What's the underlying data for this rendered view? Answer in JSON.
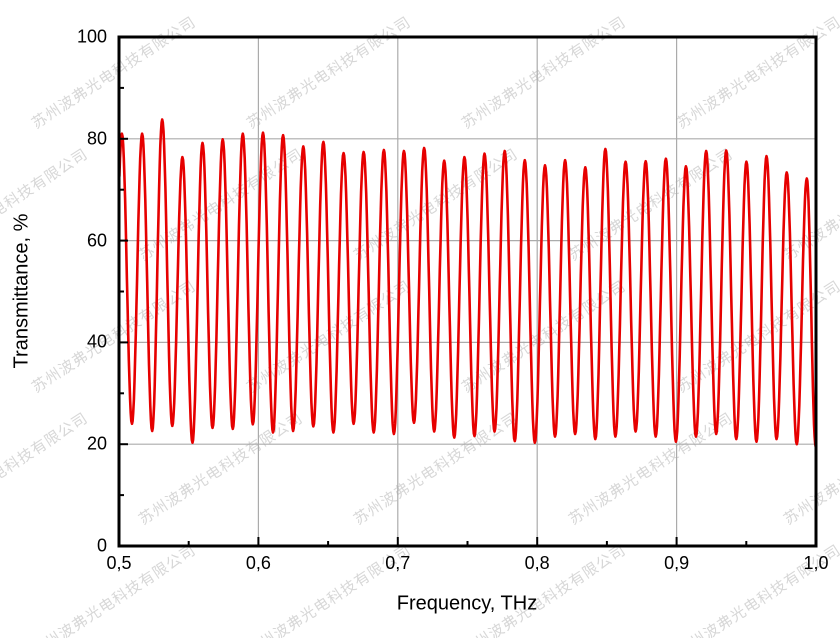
{
  "watermark": {
    "text": "苏州波弗光电科技有限公司",
    "color": "#d7d7d7"
  },
  "chart_data": {
    "type": "line",
    "title": "",
    "xlabel": "Frequency, THz",
    "ylabel": "Transmittance, %",
    "xlim": [
      0.5,
      1.0
    ],
    "ylim": [
      0,
      100
    ],
    "grid": "major",
    "legend": "none",
    "x_major_ticks": [
      0.5,
      0.6,
      0.7,
      0.8,
      0.9,
      1.0
    ],
    "x_tick_labels": [
      "0,5",
      "0,6",
      "0,7",
      "0,8",
      "0,9",
      "1,0"
    ],
    "x_minor_ticks": [
      0.55,
      0.65,
      0.75,
      0.85,
      0.95
    ],
    "y_major_ticks": [
      0,
      20,
      40,
      60,
      80,
      100
    ],
    "y_tick_labels": [
      "0",
      "20",
      "40",
      "60",
      "80",
      "100"
    ],
    "y_minor_ticks": [
      10,
      30,
      50,
      70,
      90
    ],
    "colors": {
      "curve": "#e60000",
      "gridline": "#ababab",
      "axis": "#000000"
    },
    "series": [
      {
        "name": "transmittance-fringes",
        "waveform": "fabry-perot fringe oscillation between peak and valley anchors",
        "lead_in_valley": [
          0.4949,
          24.0
        ],
        "peaks": [
          [
            0.5021,
            81.0
          ],
          [
            0.5166,
            81.0
          ],
          [
            0.531,
            83.8
          ],
          [
            0.5455,
            76.4
          ],
          [
            0.5599,
            79.2
          ],
          [
            0.5744,
            79.9
          ],
          [
            0.5888,
            81.0
          ],
          [
            0.6033,
            81.2
          ],
          [
            0.6177,
            80.7
          ],
          [
            0.6322,
            78.5
          ],
          [
            0.6466,
            79.4
          ],
          [
            0.6611,
            77.2
          ],
          [
            0.6755,
            77.4
          ],
          [
            0.69,
            77.8
          ],
          [
            0.7044,
            77.6
          ],
          [
            0.7189,
            78.2
          ],
          [
            0.7333,
            75.7
          ],
          [
            0.7478,
            76.4
          ],
          [
            0.7622,
            77.1
          ],
          [
            0.7767,
            77.6
          ],
          [
            0.7911,
            75.8
          ],
          [
            0.8056,
            74.8
          ],
          [
            0.82,
            75.8
          ],
          [
            0.8345,
            74.4
          ],
          [
            0.8489,
            78.0
          ],
          [
            0.8634,
            75.5
          ],
          [
            0.8778,
            75.6
          ],
          [
            0.8923,
            76.1
          ],
          [
            0.9067,
            74.6
          ],
          [
            0.9212,
            77.6
          ],
          [
            0.9356,
            77.7
          ],
          [
            0.9501,
            75.5
          ],
          [
            0.9645,
            76.6
          ],
          [
            0.979,
            73.4
          ],
          [
            0.9934,
            72.2
          ]
        ],
        "valleys": [
          [
            0.5093,
            24.0
          ],
          [
            0.5238,
            22.6
          ],
          [
            0.5382,
            23.6
          ],
          [
            0.5527,
            20.3
          ],
          [
            0.5671,
            23.2
          ],
          [
            0.5816,
            23.0
          ],
          [
            0.596,
            23.9
          ],
          [
            0.6105,
            22.3
          ],
          [
            0.6249,
            22.6
          ],
          [
            0.6394,
            23.5
          ],
          [
            0.6538,
            22.3
          ],
          [
            0.6683,
            24.0
          ],
          [
            0.6827,
            22.3
          ],
          [
            0.6972,
            22.0
          ],
          [
            0.7116,
            24.2
          ],
          [
            0.7261,
            22.5
          ],
          [
            0.7405,
            21.3
          ],
          [
            0.755,
            21.6
          ],
          [
            0.7694,
            22.5
          ],
          [
            0.7839,
            20.6
          ],
          [
            0.7983,
            20.3
          ],
          [
            0.8128,
            21.5
          ],
          [
            0.8272,
            22.0
          ],
          [
            0.8417,
            21.0
          ],
          [
            0.8561,
            21.5
          ],
          [
            0.8706,
            22.5
          ],
          [
            0.885,
            21.5
          ],
          [
            0.8995,
            20.5
          ],
          [
            0.9139,
            21.5
          ],
          [
            0.9284,
            22.0
          ],
          [
            0.9428,
            21.0
          ],
          [
            0.9573,
            20.5
          ],
          [
            0.9717,
            21.0
          ],
          [
            0.9862,
            20.0
          ],
          [
            0.9998,
            19.5
          ]
        ]
      }
    ]
  }
}
